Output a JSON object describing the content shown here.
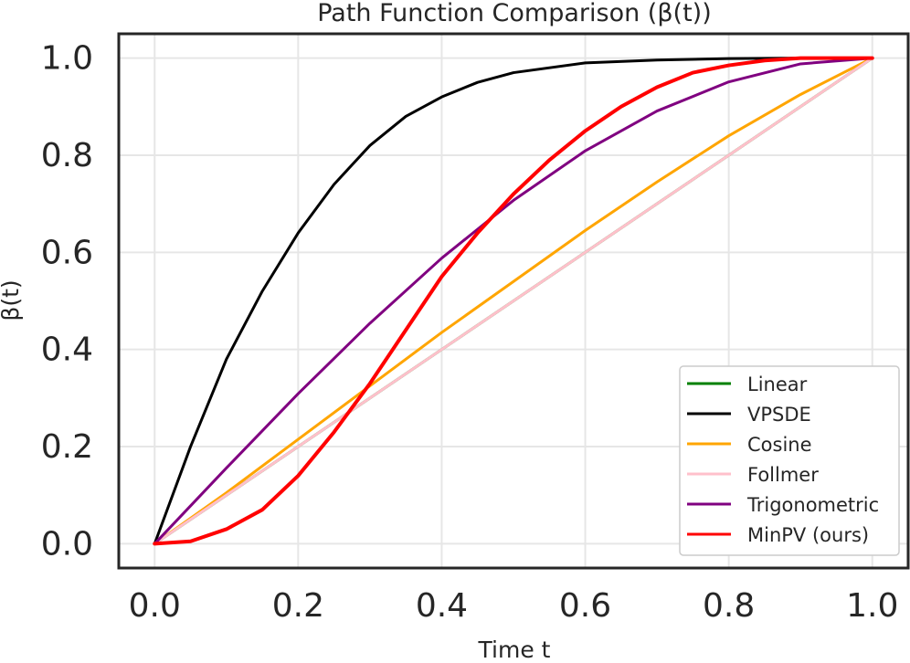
{
  "chart_data": {
    "type": "line",
    "title": "Path Function Comparison (β(t))",
    "xlabel": "Time t",
    "ylabel": "β(t)",
    "xlim": [
      -0.05,
      1.05
    ],
    "ylim": [
      -0.05,
      1.05
    ],
    "xticks": [
      0.0,
      0.2,
      0.4,
      0.6,
      0.8,
      1.0
    ],
    "xtick_labels": [
      "0.0",
      "0.2",
      "0.4",
      "0.6",
      "0.8",
      "1.0"
    ],
    "yticks": [
      0.0,
      0.2,
      0.4,
      0.6,
      0.8,
      1.0
    ],
    "ytick_labels": [
      "0.0",
      "0.2",
      "0.4",
      "0.6",
      "0.8",
      "1.0"
    ],
    "grid": true,
    "legend_position": "lower-right",
    "series": [
      {
        "name": "Linear",
        "color": "#008000",
        "x": [
          0.0,
          0.1,
          0.2,
          0.3,
          0.4,
          0.5,
          0.6,
          0.7,
          0.8,
          0.9,
          1.0
        ],
        "y": [
          0.0,
          0.1,
          0.2,
          0.3,
          0.4,
          0.5,
          0.6,
          0.7,
          0.8,
          0.9,
          1.0
        ]
      },
      {
        "name": "VPSDE",
        "color": "#000000",
        "x": [
          0.0,
          0.05,
          0.1,
          0.15,
          0.2,
          0.25,
          0.3,
          0.35,
          0.4,
          0.45,
          0.5,
          0.6,
          0.7,
          0.8,
          0.9,
          1.0
        ],
        "y": [
          0.0,
          0.2,
          0.38,
          0.52,
          0.64,
          0.74,
          0.82,
          0.88,
          0.92,
          0.95,
          0.97,
          0.99,
          0.996,
          0.999,
          1.0,
          1.0
        ]
      },
      {
        "name": "Cosine",
        "color": "#FFA500",
        "x": [
          0.0,
          0.1,
          0.2,
          0.3,
          0.4,
          0.5,
          0.6,
          0.7,
          0.8,
          0.9,
          1.0
        ],
        "y": [
          0.0,
          0.105,
          0.215,
          0.325,
          0.435,
          0.54,
          0.645,
          0.745,
          0.84,
          0.925,
          1.0
        ]
      },
      {
        "name": "Follmer",
        "color": "#FFC0CB",
        "x": [
          0.0,
          0.1,
          0.2,
          0.3,
          0.4,
          0.5,
          0.6,
          0.7,
          0.8,
          0.9,
          1.0
        ],
        "y": [
          0.0,
          0.1,
          0.2,
          0.3,
          0.4,
          0.5,
          0.6,
          0.7,
          0.8,
          0.9,
          1.0
        ]
      },
      {
        "name": "Trigonometric",
        "color": "#800080",
        "x": [
          0.0,
          0.1,
          0.2,
          0.3,
          0.4,
          0.5,
          0.6,
          0.7,
          0.8,
          0.9,
          1.0
        ],
        "y": [
          0.0,
          0.156,
          0.309,
          0.454,
          0.588,
          0.707,
          0.809,
          0.891,
          0.951,
          0.988,
          1.0
        ]
      },
      {
        "name": "MinPV (ours)",
        "color": "#FF0000",
        "x": [
          0.0,
          0.05,
          0.1,
          0.15,
          0.2,
          0.25,
          0.3,
          0.35,
          0.4,
          0.45,
          0.5,
          0.55,
          0.6,
          0.65,
          0.7,
          0.75,
          0.8,
          0.85,
          0.9,
          0.95,
          1.0
        ],
        "y": [
          0.0,
          0.005,
          0.03,
          0.07,
          0.14,
          0.23,
          0.33,
          0.44,
          0.55,
          0.64,
          0.72,
          0.79,
          0.85,
          0.9,
          0.94,
          0.97,
          0.985,
          0.995,
          1.0,
          1.0,
          1.0
        ]
      }
    ]
  }
}
